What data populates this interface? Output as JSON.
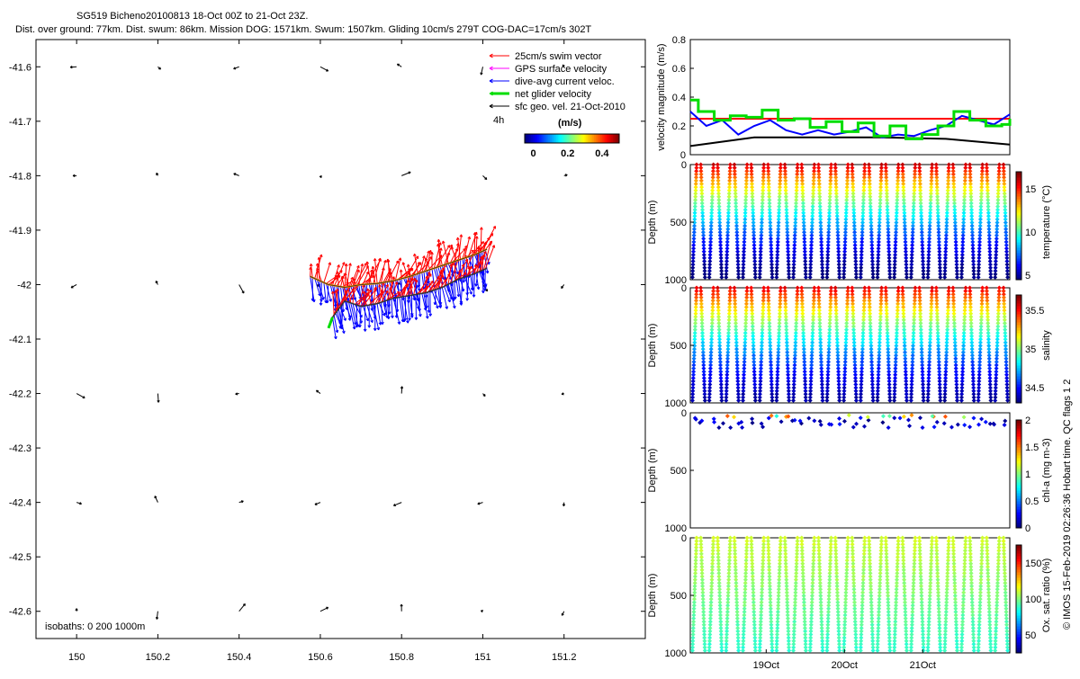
{
  "figure": {
    "title_line1": "SG519 Bicheno20100813 18-Oct 00Z to 21-Oct 23Z.",
    "title_line2": "Dist. over ground: 77km. Dist. swum: 86km. Mission DOG: 1571km. Swum: 1507km. Gliding 10cm/s 279T COG-DAC=17cm/s 302T",
    "credit": "© IMOS 15-Feb-2019 02:26:36 Hobart time. QC flags 1  2"
  },
  "colors": {
    "swim": "#ff0000",
    "gps": "#ff00ff",
    "dac": "#0000ff",
    "net": "#00dd00",
    "geo": "#000000",
    "track": "#ff9900"
  },
  "chart_data": [
    {
      "type": "scatter",
      "panel": "map",
      "xlim": [
        149.9,
        151.4
      ],
      "ylim": [
        -42.65,
        -41.55
      ],
      "xticks": [
        150,
        150.2,
        150.4,
        150.6,
        150.8,
        151,
        151.2
      ],
      "xtick_labels": [
        "150",
        "150.2",
        "150.4",
        "150.6",
        "150.8",
        "151",
        "151.2"
      ],
      "yticks": [
        -41.6,
        -41.7,
        -41.8,
        -41.9,
        -42,
        -42.1,
        -42.2,
        -42.3,
        -42.4,
        -42.5,
        -42.6
      ],
      "ytick_labels": [
        "-41.6",
        "-41.7",
        "-41.8",
        "-41.9",
        "-42",
        "-42.1",
        "-42.2",
        "-42.3",
        "-42.4",
        "-42.5",
        "-42.6"
      ],
      "legend": {
        "placement": "top-right",
        "entries": [
          "25cm/s swim vector",
          "GPS surface velocity",
          "dive-avg current veloc.",
          "net glider velocity",
          "sfc geo. vel. 21-Oct-2010"
        ],
        "time_label": "4h",
        "colorbar_label": "(m/s)",
        "colorbar_ticks": [
          "0",
          "0.2",
          "0.4"
        ],
        "colorbar_range": [
          -0.05,
          0.5
        ]
      },
      "isobaths_label": "isobaths: 0   200  1000m",
      "track": {
        "lon": [
          150.575,
          150.62,
          150.66,
          150.7,
          150.74,
          150.78,
          150.82,
          150.86,
          150.9,
          150.94,
          150.98,
          151.01
        ],
        "lat": [
          -41.985,
          -42.0,
          -42.005,
          -42.0,
          -41.998,
          -41.993,
          -41.985,
          -41.975,
          -41.965,
          -41.955,
          -41.945,
          -41.935
        ],
        "lon2": [
          150.63,
          150.66,
          150.7,
          150.74,
          150.78,
          150.82,
          150.86,
          150.9,
          150.94,
          150.98,
          151.01
        ],
        "lat2": [
          -42.06,
          -42.03,
          -42.04,
          -42.035,
          -42.025,
          -42.02,
          -42.015,
          -42.005,
          -41.99,
          -41.98,
          -41.97
        ]
      },
      "geo_grid": {
        "lon": [
          150.0,
          150.2,
          150.4,
          150.6,
          150.8,
          151.0,
          151.2
        ],
        "lat": [
          -41.6,
          -41.8,
          -42.0,
          -42.2,
          -42.4,
          -42.6
        ]
      }
    },
    {
      "type": "line",
      "panel": "velocity",
      "ylabel": "velocity magnitude (m/s)",
      "ylim": [
        0,
        0.8
      ],
      "yticks": [
        0,
        0.2,
        0.4,
        0.6,
        0.8
      ],
      "xlim": [
        0,
        4
      ],
      "series": [
        {
          "key": "swim",
          "x": [
            0,
            4
          ],
          "values": [
            0.25,
            0.25
          ]
        },
        {
          "key": "geo",
          "x": [
            0,
            0.8,
            1.6,
            2.4,
            3.2,
            4.0
          ],
          "values": [
            0.06,
            0.12,
            0.12,
            0.12,
            0.11,
            0.07
          ]
        },
        {
          "key": "dac",
          "x": [
            0,
            0.2,
            0.4,
            0.6,
            0.8,
            1.0,
            1.2,
            1.4,
            1.6,
            1.8,
            2.0,
            2.2,
            2.4,
            2.6,
            2.8,
            3.0,
            3.2,
            3.4,
            3.6,
            3.8,
            4.0
          ],
          "values": [
            0.3,
            0.2,
            0.24,
            0.14,
            0.2,
            0.24,
            0.17,
            0.14,
            0.17,
            0.14,
            0.16,
            0.19,
            0.12,
            0.14,
            0.13,
            0.17,
            0.2,
            0.27,
            0.24,
            0.21,
            0.28
          ]
        },
        {
          "key": "net",
          "x": [
            0,
            0.1,
            0.3,
            0.5,
            0.7,
            0.9,
            1.1,
            1.3,
            1.5,
            1.7,
            1.9,
            2.1,
            2.3,
            2.5,
            2.7,
            2.9,
            3.1,
            3.3,
            3.5,
            3.7,
            3.9,
            4.0
          ],
          "values": [
            0.38,
            0.3,
            0.24,
            0.27,
            0.26,
            0.31,
            0.24,
            0.25,
            0.19,
            0.23,
            0.16,
            0.22,
            0.13,
            0.2,
            0.11,
            0.14,
            0.2,
            0.3,
            0.24,
            0.2,
            0.21,
            0.25
          ]
        }
      ]
    },
    {
      "type": "scatter",
      "panel": "temperature",
      "ylabel": "Depth (m)",
      "cbar_label": "temperature (°C)",
      "ylim": [
        0,
        1000
      ],
      "yticks": [
        0,
        500,
        1000
      ],
      "crange": [
        4.5,
        17
      ],
      "cticks": [
        5,
        10,
        15
      ],
      "dives": 38,
      "surface_value": 16,
      "bottom_value": 4.5
    },
    {
      "type": "scatter",
      "panel": "salinity",
      "ylabel": "Depth (m)",
      "cbar_label": "salinity",
      "ylim": [
        0,
        1000
      ],
      "yticks": [
        0,
        500,
        1000
      ],
      "crange": [
        34.3,
        35.7
      ],
      "cticks": [
        34.5,
        35,
        35.5
      ],
      "dives": 38,
      "surface_value": 35.55,
      "bottom_value": 34.35
    },
    {
      "type": "scatter",
      "panel": "chla",
      "ylabel": "Depth (m)",
      "cbar_label": "chl-a (mg m-3)",
      "ylim": [
        0,
        1000
      ],
      "yticks": [
        0,
        500,
        1000
      ],
      "crange": [
        0,
        2
      ],
      "cticks": [
        0,
        0.5,
        1,
        1.5,
        2
      ],
      "dives": 38,
      "surface_value": 0.9,
      "bottom_value": 0.02
    },
    {
      "type": "scatter",
      "panel": "oxygen",
      "ylabel": "Depth (m)",
      "cbar_label": "Ox. sat. ratio (%)",
      "ylim": [
        0,
        1000
      ],
      "yticks": [
        0,
        500,
        1000
      ],
      "crange": [
        25,
        175
      ],
      "cticks": [
        50,
        100,
        150
      ],
      "dives": 38,
      "surface_value": 112,
      "bottom_value": 88,
      "xticks": [
        0.95,
        1.93,
        2.91
      ],
      "xtick_labels": [
        "19Oct",
        "20Oct",
        "21Oct"
      ],
      "xlim": [
        0,
        4
      ]
    }
  ]
}
